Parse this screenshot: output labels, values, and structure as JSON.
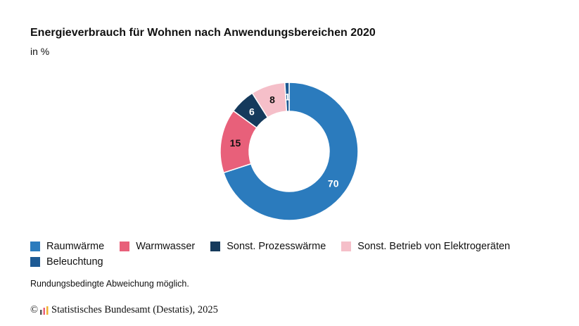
{
  "title": "Energieverbrauch für Wohnen nach Anwendungsbereichen 2020",
  "subtitle": "in %",
  "note": "Rundungsbedingte Abweichung möglich.",
  "source": {
    "copyright": "©",
    "text": "Statistisches Bundesamt (Destatis), 2025"
  },
  "chart_data": {
    "type": "pie",
    "variant": "donut",
    "title": "Energieverbrauch für Wohnen nach Anwendungsbereichen 2020",
    "unit": "in %",
    "legend_position": "bottom-left",
    "categories": [
      "Raumwärme",
      "Warmwasser",
      "Sonst. Prozesswärme",
      "Sonst. Betrieb von Elektrogeräten",
      "Beleuchtung"
    ],
    "values": [
      70,
      15,
      6,
      8,
      1
    ],
    "colors": [
      "#2b7bbd",
      "#e8607a",
      "#153a5c",
      "#f5bfc9",
      "#1d5a94"
    ],
    "label_colors": [
      "#ffffff",
      "#111111",
      "#ffffff",
      "#111111",
      "#ffffff"
    ]
  }
}
